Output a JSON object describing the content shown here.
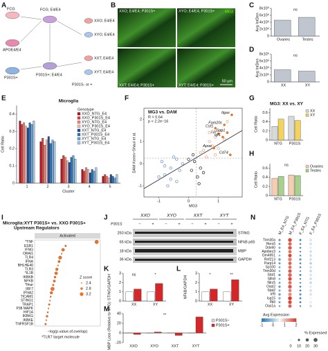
{
  "panel_letters": [
    "A",
    "B",
    "C",
    "D",
    "E",
    "F",
    "G",
    "H",
    "I",
    "J",
    "K",
    "L",
    "M",
    "N"
  ],
  "A": {
    "labels": [
      "FCG",
      "FCG; E4/E4",
      "APOE4/E4",
      "XXO; E4/E4",
      "XYO; E4/E4",
      "P301S+",
      "XXT; E4/E4",
      "XYT; E4/E4",
      "P301S+; E4/E4",
      "P301S- or +"
    ]
  },
  "B": {
    "captions": [
      "XXO; E4/E4; P301S+",
      "XYO; E4/E4; P301S+",
      "XXT; E4/E4; P301S+",
      "XYT; E4/E4; P301S+"
    ],
    "stain": "MG3",
    "scale_bar": "50 µm"
  },
  "C": {
    "type": "bar",
    "ylabel": "Avg IntDen",
    "categories": [
      "Ovaries",
      "Testes"
    ],
    "values": [
      4600000,
      5400000
    ],
    "color": "#bfc6d0",
    "ylim": [
      0,
      8000000
    ],
    "yticks": [
      0,
      {
        "value": 2000000,
        "label": "2x10⁶"
      },
      {
        "value": 4000000,
        "label": "4x10⁶"
      },
      {
        "value": 6000000,
        "label": "6x10⁶"
      },
      {
        "value": 8000000,
        "label": "8x10⁶"
      }
    ],
    "annotations": [
      "ns"
    ]
  },
  "D": {
    "type": "bar",
    "ylabel": "Avg IntDen",
    "categories": [
      "XX",
      "XY"
    ],
    "values": [
      3500000,
      3100000
    ],
    "color": "#bfc6d0",
    "ylim": [
      0,
      8000000
    ],
    "yticks": [
      0,
      {
        "value": 2000000,
        "label": "2x10⁶"
      },
      {
        "value": 4000000,
        "label": "4x10⁶"
      },
      {
        "value": 6000000,
        "label": "6x10⁶"
      },
      {
        "value": 8000000,
        "label": "8x10⁶"
      }
    ],
    "annotations": [
      "ns"
    ]
  },
  "E": {
    "type": "bar",
    "title": "Microglia",
    "ylabel": "Cell Ratio",
    "xlabel": "Cluster",
    "legend_title": "Genotype",
    "categories": [
      "1",
      "2",
      "3",
      "4",
      "5"
    ],
    "ylim": [
      0,
      0.45
    ],
    "yticks": [
      0,
      0.1,
      0.2,
      0.3,
      0.4
    ],
    "series": [
      {
        "name": "XXO_NTG_E4",
        "color": "#b2182b",
        "values": [
          0.36,
          0.24,
          0.14,
          0.08,
          0.04
        ]
      },
      {
        "name": "XXO_P301S_E4",
        "color": "#e0433a",
        "values": [
          0.34,
          0.26,
          0.16,
          0.07,
          0.05
        ]
      },
      {
        "name": "XYO_NTG_E4",
        "color": "#f08a7e",
        "values": [
          0.35,
          0.22,
          0.15,
          0.09,
          0.04
        ]
      },
      {
        "name": "XYO_P301S_E4",
        "color": "#f7c1b8",
        "values": [
          0.33,
          0.25,
          0.13,
          0.08,
          0.03
        ]
      },
      {
        "name": "XXT_NTG_E4",
        "color": "#1f4e9c",
        "values": [
          0.32,
          0.27,
          0.12,
          0.06,
          0.05
        ]
      },
      {
        "name": "XXT_P301S_E4",
        "color": "#2e75b6",
        "values": [
          0.35,
          0.23,
          0.15,
          0.08,
          0.04
        ]
      },
      {
        "name": "XYT_NTG_E4",
        "color": "#6fa8dc",
        "values": [
          0.34,
          0.25,
          0.16,
          0.07,
          0.03
        ]
      },
      {
        "name": "XYT_P301S_E4",
        "color": "#a9cce8",
        "values": [
          0.36,
          0.24,
          0.14,
          0.09,
          0.05
        ]
      }
    ]
  },
  "F": {
    "type": "scatter",
    "title": "MG3 vs. DAM",
    "stats": [
      "R = 0.64",
      "p < 2.2e−16"
    ],
    "xlabel": "MG3",
    "ylabel": "DAM Keren−Shaul et al.",
    "xlim": [
      -1.5,
      1.8
    ],
    "ylim": [
      -1.5,
      2.5
    ],
    "xticks": [
      -1,
      0,
      1
    ],
    "yticks": [
      -1,
      0,
      1,
      2
    ],
    "reference_lines": [
      {
        "axis": "x",
        "value": 0.25
      },
      {
        "axis": "y",
        "value": 0.25
      }
    ],
    "series": [
      {
        "color": "#f0a07a",
        "x": [
          0.5,
          0.7,
          0.9,
          1.1,
          0.6,
          0.8,
          1.3,
          0.4,
          1.0,
          0.7,
          1.2,
          0.9
        ],
        "y": [
          0.6,
          1.0,
          1.2,
          1.5,
          0.3,
          0.8,
          1.9,
          0.5,
          0.7,
          1.4,
          1.1,
          0.4
        ]
      },
      {
        "color": "#5b8fc9",
        "x": [
          -0.8,
          -0.6,
          -0.4,
          -0.9,
          -0.3,
          -0.5,
          -0.7,
          -1.0,
          -0.2,
          -0.6,
          -0.4,
          -0.8
        ],
        "y": [
          -0.5,
          -0.2,
          -0.8,
          0.1,
          -0.3,
          0.3,
          -1.0,
          -0.6,
          0.0,
          -0.7,
          0.2,
          -0.1
        ]
      },
      {
        "color": "#222222",
        "x": [
          0.1,
          0.2,
          0.3,
          0.0,
          0.4,
          0.15,
          0.35,
          0.5
        ],
        "y": [
          -0.3,
          0.1,
          -0.6,
          0.2,
          -0.2,
          0.4,
          -0.9,
          -0.4
        ]
      }
    ],
    "genes": [
      {
        "label": "Itgax",
        "x": 1.45,
        "y": 2.2
      },
      {
        "label": "Fam20c",
        "x": 1.2,
        "y": 1.75
      },
      {
        "label": "Csf1",
        "x": 0.9,
        "y": 1.6
      },
      {
        "label": "Lpl",
        "x": 1.0,
        "y": 1.35
      },
      {
        "label": "Spp1",
        "x": 1.3,
        "y": 1.4
      },
      {
        "label": "Igf1",
        "x": 1.15,
        "y": 1.2
      },
      {
        "label": "Apoe",
        "x": 0.85,
        "y": 0.7
      },
      {
        "label": "Cd74",
        "x": 1.4,
        "y": 0.4
      }
    ]
  },
  "G": {
    "type": "bar",
    "title": "MG3: XX vs. XY",
    "ylabel": "Cell Ratio",
    "categories": [
      "NTG",
      "P301S"
    ],
    "ylim": [
      0,
      0.7
    ],
    "yticks": [
      0,
      0.2,
      0.4,
      0.6
    ],
    "series": [
      {
        "name": "XX",
        "color": "#d9d9d9",
        "values": [
          0.3,
          0.52
        ]
      },
      {
        "name": "XY",
        "color": "#f2d35e",
        "values": [
          0.46,
          0.43
        ]
      }
    ]
  },
  "H": {
    "type": "bar",
    "ylabel": "Cell Ratio",
    "categories": [
      "NTG",
      "P301S"
    ],
    "ylim": [
      0,
      0.7
    ],
    "yticks": [
      0,
      0.2,
      0.4,
      0.6
    ],
    "annotations": [
      "ns"
    ],
    "series": [
      {
        "name": "Ovaries",
        "color": "#f6cdb0",
        "values": [
          0.38,
          0.45
        ]
      },
      {
        "name": "Testes",
        "color": "#a9d18e",
        "values": [
          0.42,
          0.44
        ]
      }
    ]
  },
  "I": {
    "type": "dot",
    "title": "Microglia:XYT P301S+ vs. XXO P301S+",
    "subtitle": "Upstream Regulators",
    "group": "Activated",
    "xlabel": "−log(p.value.of.overlap)",
    "footnote": "*TLR7 target molecule",
    "size_title": "Z score",
    "size_ticks": [
      2.4,
      2.8,
      3.2
    ],
    "color": "#e8742a",
    "xlim": [
      0,
      18
    ],
    "categories": [
      "*TNF",
      "ESR1",
      "IFNG",
      "ORAI1",
      "TLR4",
      "IFNA",
      "BHLHE40",
      "TLR3",
      "*IL1B",
      "IKBKB",
      "NFKB",
      "*Ifnar",
      "IRF7",
      "IFNA2",
      "TICAM1",
      "STING1",
      "TRAP1",
      "P38 MAPK",
      "HIF1A",
      "IKBKG",
      "IKBKE",
      "TNFRSF1B"
    ],
    "values": [
      17,
      8.5,
      7.8,
      7.4,
      7.0,
      6.7,
      6.4,
      6.1,
      5.9,
      5.6,
      5.4,
      5.1,
      4.9,
      4.6,
      4.4,
      4.2,
      4.0,
      3.8,
      3.6,
      3.4,
      3.2,
      3.0
    ],
    "zscores": [
      3.2,
      2.6,
      3.0,
      2.4,
      3.1,
      2.8,
      2.4,
      2.9,
      3.0,
      2.7,
      2.8,
      2.6,
      3.2,
      2.9,
      2.5,
      2.4,
      2.6,
      2.4,
      2.5,
      2.7,
      2.4,
      2.6
    ]
  },
  "J": {
    "groups": [
      "XXO",
      "XYO",
      "XXT",
      "XYT"
    ],
    "row_label": "P301S",
    "signs": [
      "−",
      "+"
    ],
    "sizes": [
      "250 kDa",
      "65 kDa",
      "18 kDa",
      "36 kDa"
    ],
    "proteins": [
      "STING",
      "NFkB p65",
      "MBP",
      "GAPDH"
    ]
  },
  "K": {
    "type": "bar",
    "ylabel": "STING/GAPDH",
    "categories": [
      "XX",
      "XY"
    ],
    "ylim": [
      0,
      3
    ],
    "yticks": [
      0,
      1,
      2,
      3
    ],
    "annotations": [
      "ns",
      "*"
    ],
    "series": [
      {
        "name": "P301S−",
        "color": "#ffffff",
        "values": [
          1.0,
          1.0
        ]
      },
      {
        "name": "P301S+",
        "color": "#d62728",
        "values": [
          1.3,
          1.9
        ]
      }
    ]
  },
  "L": {
    "type": "bar",
    "ylabel": "NFkB/GAPDH",
    "categories": [
      "XX",
      "XY"
    ],
    "ylim": [
      0,
      3
    ],
    "yticks": [
      0,
      1,
      2,
      3
    ],
    "annotations": [
      "*",
      "**"
    ],
    "series": [
      {
        "name": "P301S−",
        "color": "#ffffff",
        "values": [
          1.0,
          1.0
        ]
      },
      {
        "name": "P301S+",
        "color": "#d62728",
        "values": [
          1.3,
          2.3
        ]
      }
    ]
  },
  "M": {
    "type": "bar",
    "ylabel": "% MBP Loss (Relative to NTG)",
    "categories": [
      "XXO",
      "XYO",
      "XXT",
      "XYT"
    ],
    "ylim": [
      -20,
      40
    ],
    "yticks": [
      -20,
      0,
      20,
      40
    ],
    "annotations": [
      "**"
    ],
    "series": [
      {
        "name": "P301S−",
        "color": "#d9d9d9",
        "values": [
          0,
          0,
          0,
          0
        ]
      },
      {
        "name": "P301S+",
        "color": "#d62728",
        "values": [
          -3,
          2,
          -5,
          33
        ]
      }
    ]
  },
  "N": {
    "type": "dotplot",
    "columns": [
      "M_E4_NTG",
      "M_E4_P301S",
      "F_E4_NTG",
      "F_E4_P301S"
    ],
    "genes": [
      "Trim30a",
      "Herc6",
      "Ddx60",
      "Apobec3",
      "Gm4951",
      "Rnf213",
      "Parp14",
      "Sp100",
      "Trim30d",
      "Stat1",
      "Slfn8",
      "Nlrc5",
      "Oasl2",
      "Stat2",
      "Irf9",
      "Isg15",
      "Ifit3",
      "Oas1a"
    ],
    "expression": [
      [
        -0.6,
        1.8,
        -0.9,
        0.3
      ],
      [
        -0.5,
        1.6,
        -0.8,
        0.2
      ],
      [
        -0.4,
        1.7,
        -0.7,
        0.4
      ],
      [
        -0.6,
        1.5,
        -0.9,
        0.1
      ],
      [
        -0.3,
        1.8,
        -0.8,
        0.2
      ],
      [
        -0.5,
        1.4,
        -0.6,
        0.3
      ],
      [
        -0.6,
        1.6,
        -0.8,
        0.0
      ],
      [
        -0.4,
        1.5,
        -0.9,
        0.2
      ],
      [
        -0.5,
        1.7,
        -0.7,
        0.1
      ],
      [
        -0.6,
        1.6,
        -0.8,
        0.3
      ],
      [
        -0.4,
        1.8,
        -0.9,
        0.2
      ],
      [
        -0.5,
        1.5,
        -0.7,
        0.1
      ],
      [
        -0.6,
        1.7,
        -0.8,
        0.4
      ],
      [
        -0.4,
        1.4,
        -0.9,
        0.2
      ],
      [
        -0.5,
        1.3,
        -0.6,
        0.3
      ],
      [
        -0.3,
        1.9,
        -0.8,
        0.5
      ],
      [
        -0.5,
        1.8,
        -0.9,
        0.4
      ],
      [
        -0.4,
        1.6,
        -0.7,
        0.2
      ]
    ],
    "pct_expressed": [
      [
        10,
        28,
        8,
        15
      ],
      [
        8,
        24,
        6,
        12
      ],
      [
        9,
        26,
        7,
        14
      ],
      [
        6,
        22,
        5,
        10
      ],
      [
        7,
        25,
        6,
        13
      ],
      [
        12,
        27,
        10,
        17
      ],
      [
        9,
        23,
        7,
        12
      ],
      [
        8,
        22,
        6,
        11
      ],
      [
        6,
        24,
        5,
        12
      ],
      [
        11,
        28,
        9,
        16
      ],
      [
        7,
        26,
        5,
        14
      ],
      [
        8,
        23,
        6,
        12
      ],
      [
        10,
        27,
        7,
        15
      ],
      [
        9,
        22,
        7,
        12
      ],
      [
        12,
        25,
        10,
        16
      ],
      [
        11,
        29,
        8,
        17
      ],
      [
        9,
        27,
        7,
        15
      ],
      [
        7,
        24,
        6,
        12
      ]
    ],
    "color_title": "Avg Expression",
    "color_ticks": [
      -1,
      0,
      1,
      2
    ],
    "colormap": [
      "#2c7bb6",
      "#f7f7f7",
      "#d7301f"
    ],
    "size_title": "% Expressed",
    "size_ticks": [
      0,
      10,
      20,
      30
    ]
  }
}
